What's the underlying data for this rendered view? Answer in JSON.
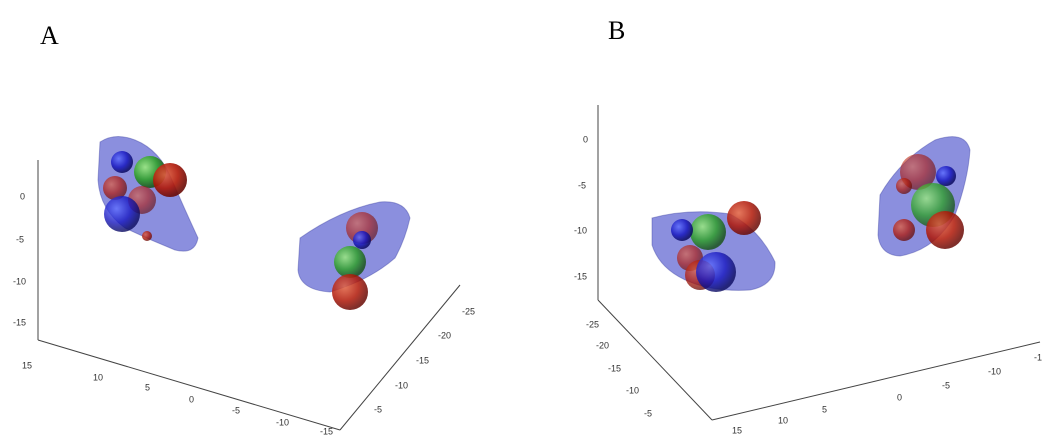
{
  "panels": [
    {
      "label": "A",
      "z_ticks": [
        "0",
        "-5",
        "-10",
        "-15"
      ],
      "x_ticks": [
        "15",
        "10",
        "5",
        "0",
        "-5",
        "-10",
        "-15"
      ],
      "y_ticks": [
        "-25",
        "-20",
        "-15",
        "-10",
        "-5"
      ]
    },
    {
      "label": "B",
      "z_ticks": [
        "0",
        "-5",
        "-10",
        "-15"
      ],
      "y_ticks": [
        "-25",
        "-20",
        "-15",
        "-10",
        "-5"
      ],
      "x_ticks": [
        "15",
        "10",
        "5",
        "0",
        "-5",
        "-10",
        "-1"
      ]
    }
  ]
}
